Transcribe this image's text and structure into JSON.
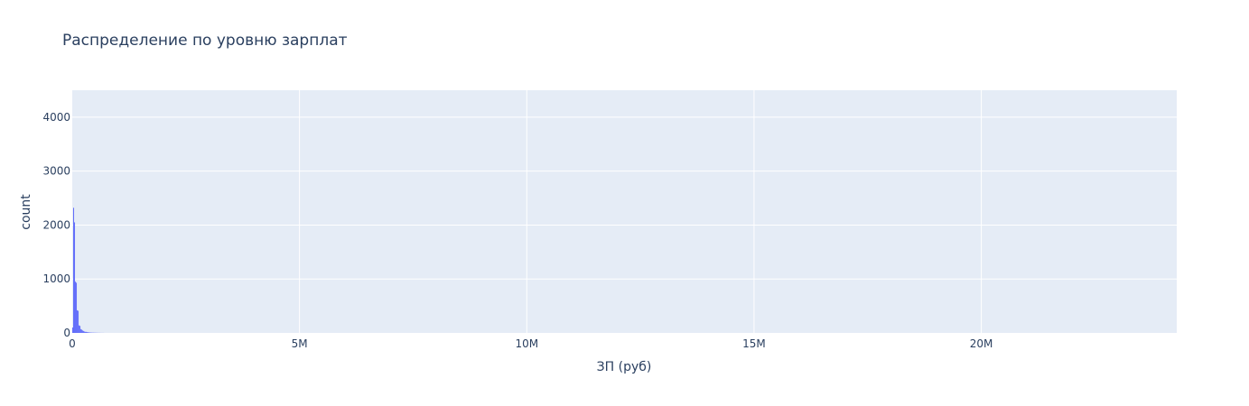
{
  "chart_data": {
    "type": "bar",
    "title": "Распределение по уровню зарплат",
    "xlabel": "ЗП (руб)",
    "ylabel": "count",
    "xlim": [
      0,
      24300000
    ],
    "ylim": [
      0,
      4500
    ],
    "x_ticks": [
      {
        "value": 0,
        "label": "0"
      },
      {
        "value": 5000000,
        "label": "5M"
      },
      {
        "value": 10000000,
        "label": "10M"
      },
      {
        "value": 15000000,
        "label": "15M"
      },
      {
        "value": 20000000,
        "label": "20M"
      }
    ],
    "y_ticks": [
      {
        "value": 0,
        "label": "0"
      },
      {
        "value": 1000,
        "label": "1000"
      },
      {
        "value": 2000,
        "label": "2000"
      },
      {
        "value": 3000,
        "label": "3000"
      },
      {
        "value": 4000,
        "label": "4000"
      }
    ],
    "grid": true,
    "colors": {
      "plot_background": "#e5ecf6",
      "grid": "#ffffff",
      "bar": "#636efa",
      "text": "#2a3f5f"
    },
    "bins": [
      {
        "x0": 0,
        "x1": 20000,
        "count": 100
      },
      {
        "x0": 20000,
        "x1": 40000,
        "count": 2320
      },
      {
        "x0": 40000,
        "x1": 60000,
        "count": 2050
      },
      {
        "x0": 60000,
        "x1": 80000,
        "count": 950
      },
      {
        "x0": 80000,
        "x1": 100000,
        "count": 930
      },
      {
        "x0": 100000,
        "x1": 120000,
        "count": 420
      },
      {
        "x0": 120000,
        "x1": 140000,
        "count": 410
      },
      {
        "x0": 140000,
        "x1": 160000,
        "count": 140
      },
      {
        "x0": 160000,
        "x1": 180000,
        "count": 130
      },
      {
        "x0": 180000,
        "x1": 200000,
        "count": 70
      },
      {
        "x0": 200000,
        "x1": 220000,
        "count": 60
      },
      {
        "x0": 220000,
        "x1": 240000,
        "count": 45
      },
      {
        "x0": 240000,
        "x1": 260000,
        "count": 35
      },
      {
        "x0": 260000,
        "x1": 280000,
        "count": 25
      },
      {
        "x0": 280000,
        "x1": 300000,
        "count": 20
      },
      {
        "x0": 300000,
        "x1": 320000,
        "count": 20
      },
      {
        "x0": 320000,
        "x1": 340000,
        "count": 15
      },
      {
        "x0": 340000,
        "x1": 360000,
        "count": 12
      },
      {
        "x0": 360000,
        "x1": 380000,
        "count": 10
      },
      {
        "x0": 380000,
        "x1": 400000,
        "count": 8
      },
      {
        "x0": 400000,
        "x1": 420000,
        "count": 7
      },
      {
        "x0": 420000,
        "x1": 440000,
        "count": 6
      },
      {
        "x0": 440000,
        "x1": 460000,
        "count": 5
      },
      {
        "x0": 460000,
        "x1": 480000,
        "count": 5
      },
      {
        "x0": 480000,
        "x1": 500000,
        "count": 4
      },
      {
        "x0": 500000,
        "x1": 520000,
        "count": 4
      },
      {
        "x0": 520000,
        "x1": 540000,
        "count": 3
      },
      {
        "x0": 540000,
        "x1": 560000,
        "count": 3
      },
      {
        "x0": 560000,
        "x1": 580000,
        "count": 2
      },
      {
        "x0": 580000,
        "x1": 600000,
        "count": 2
      },
      {
        "x0": 600000,
        "x1": 620000,
        "count": 2
      },
      {
        "x0": 620000,
        "x1": 640000,
        "count": 1
      },
      {
        "x0": 640000,
        "x1": 660000,
        "count": 1
      },
      {
        "x0": 660000,
        "x1": 680000,
        "count": 1
      },
      {
        "x0": 680000,
        "x1": 700000,
        "count": 1
      }
    ]
  }
}
